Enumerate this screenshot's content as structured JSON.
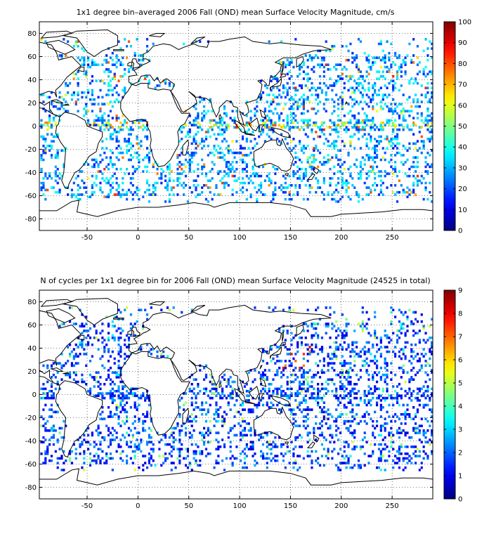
{
  "chart_data": [
    {
      "type": "heatmap",
      "title": "1x1 degree bin–averaged 2006 Fall (OND) mean Surface Velocity Magnitude, cm/s",
      "xlabel": "",
      "ylabel": "",
      "xlim": [
        -97,
        290
      ],
      "ylim": [
        -90,
        90
      ],
      "x_ticks": [
        -50,
        0,
        50,
        100,
        150,
        200,
        250
      ],
      "y_ticks": [
        80,
        60,
        40,
        20,
        0,
        -20,
        -40,
        -60,
        -80
      ],
      "grid": true,
      "colorbar": {
        "min": 0,
        "max": 100,
        "ticks": [
          0,
          10,
          20,
          30,
          40,
          50,
          60,
          70,
          80,
          90,
          100
        ],
        "placement": "right"
      },
      "colormap": "jet"
    },
    {
      "type": "heatmap",
      "title": "N of cycles per 1x1 degree bin for 2006 Fall (OND) mean Surface Velocity Magnitude (24525 in total)",
      "xlabel": "",
      "ylabel": "",
      "xlim": [
        -97,
        290
      ],
      "ylim": [
        -90,
        90
      ],
      "x_ticks": [
        -50,
        0,
        50,
        100,
        150,
        200,
        250
      ],
      "y_ticks": [
        80,
        60,
        40,
        20,
        0,
        -20,
        -40,
        -60,
        -80
      ],
      "grid": true,
      "colorbar": {
        "min": 0,
        "max": 9,
        "ticks": [
          0,
          1,
          2,
          3,
          4,
          5,
          6,
          7,
          8,
          9
        ],
        "placement": "right"
      },
      "colormap": "jet"
    }
  ]
}
